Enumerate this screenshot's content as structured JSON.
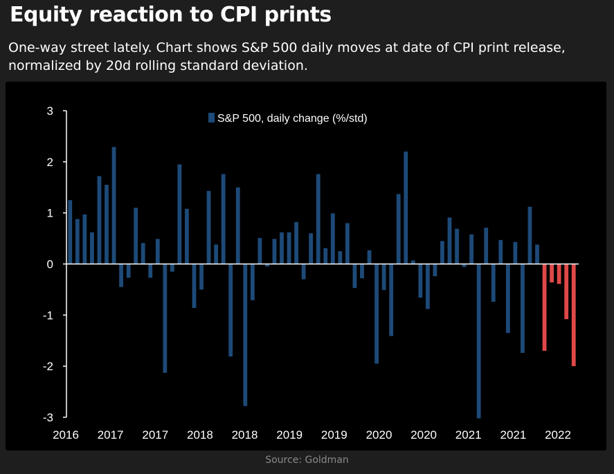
{
  "page": {
    "title": "Equity reaction to CPI prints",
    "subtitle": "One-way street lately. Chart shows S&P 500 daily moves at date of CPI print release, normalized by 20d rolling standard deviation.",
    "source": "Source: Goldman"
  },
  "colors": {
    "background": "#1e1e1e",
    "panel": "#000000",
    "bar": "#1d4a78",
    "bar_highlight": "#e04848",
    "axis": "#ffffff"
  },
  "chart_data": {
    "type": "bar",
    "title": "",
    "xlabel": "",
    "ylabel": "",
    "ylim": [
      -3,
      3
    ],
    "yticks": [
      -3,
      -2,
      -1,
      0,
      1,
      2,
      3
    ],
    "grid": false,
    "legend_position": "top",
    "x_tick_labels": [
      "2016",
      "2017",
      "2017",
      "2018",
      "2018",
      "2019",
      "2019",
      "2020",
      "2020",
      "2021",
      "2021",
      "2022"
    ],
    "series": [
      {
        "name": "S&P 500, daily change (%/std)",
        "values": [
          1.25,
          0.88,
          0.97,
          0.62,
          1.72,
          1.55,
          2.29,
          -0.45,
          -0.27,
          1.1,
          0.41,
          -0.27,
          0.49,
          -2.13,
          -0.15,
          1.95,
          1.08,
          -0.86,
          -0.5,
          1.43,
          0.38,
          1.76,
          -1.81,
          1.5,
          -2.78,
          -0.71,
          0.51,
          -0.05,
          0.49,
          0.62,
          0.62,
          0.82,
          -0.3,
          0.6,
          1.76,
          0.31,
          0.99,
          0.25,
          0.8,
          -0.47,
          -0.28,
          0.27,
          -1.95,
          -0.51,
          -1.41,
          1.37,
          2.2,
          0.07,
          -0.66,
          -0.88,
          -0.24,
          0.45,
          0.91,
          0.69,
          -0.06,
          0.58,
          -3.02,
          0.71,
          -0.74,
          0.47,
          -1.35,
          0.43,
          -1.74,
          1.12,
          0.38,
          -1.7,
          -0.36,
          -0.39,
          -1.08,
          -2.0
        ],
        "highlight_last": 5
      }
    ]
  }
}
